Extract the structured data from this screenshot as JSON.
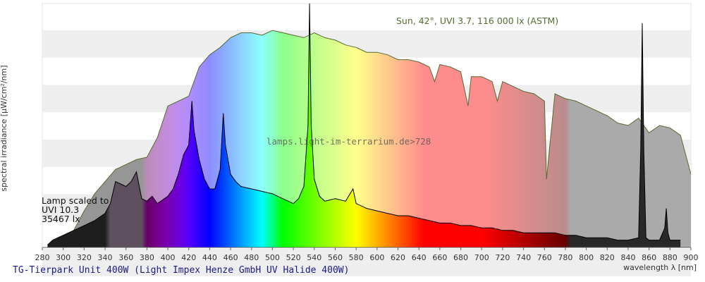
{
  "chart_data": {
    "type": "area",
    "xlabel": "wavelength λ [nm]",
    "ylabel": "spectral irradiance [µW/cm²/nm]",
    "xlim": [
      280,
      900
    ],
    "ylim": [
      0,
      100
    ],
    "x_ticks": [
      280,
      300,
      320,
      340,
      360,
      380,
      400,
      420,
      440,
      460,
      480,
      500,
      520,
      540,
      560,
      580,
      600,
      620,
      640,
      660,
      680,
      700,
      720,
      740,
      760,
      780,
      800,
      820,
      840,
      860,
      880,
      900
    ],
    "grid": "horizontal bands",
    "annotations": {
      "sun": "Sun, 42°, UVI 3.7, 116 000 lx (ASTM)",
      "watermark": "lamps.light-im-terrarium.de>728",
      "lamp_line1": "Lamp scaled to",
      "lamp_line2": "UVI 10.3",
      "lamp_line3": "35467 lx"
    },
    "caption": "TG-Tierpark Unit 400W (Light Impex Henze GmbH UV Halide 400W)",
    "series": [
      {
        "name": "Sun, 42°, UVI 3.7, 116 000 lx (ASTM)",
        "x": [
          295,
          300,
          310,
          320,
          330,
          340,
          350,
          360,
          370,
          380,
          390,
          400,
          410,
          420,
          430,
          440,
          450,
          460,
          470,
          480,
          490,
          500,
          510,
          520,
          530,
          540,
          550,
          560,
          570,
          580,
          590,
          600,
          610,
          620,
          630,
          640,
          650,
          655,
          660,
          670,
          680,
          687,
          690,
          700,
          710,
          715,
          720,
          730,
          740,
          750,
          760,
          762,
          770,
          780,
          790,
          800,
          810,
          820,
          830,
          840,
          850,
          860,
          870,
          880,
          890,
          900
        ],
        "y": [
          0,
          2,
          7,
          15,
          22,
          27,
          32,
          34,
          36,
          37,
          45,
          58,
          60,
          62,
          74,
          79,
          82,
          86,
          88,
          88,
          87,
          89,
          88,
          87,
          86,
          88,
          86,
          85,
          83,
          82,
          80,
          80,
          79,
          77,
          77,
          76,
          74,
          68,
          75,
          74,
          72,
          58,
          70,
          70,
          68,
          60,
          68,
          66,
          64,
          63,
          60,
          28,
          63,
          61,
          60,
          58,
          56,
          54,
          51,
          50,
          53,
          47,
          50,
          49,
          46,
          30
        ]
      },
      {
        "name": "Lamp scaled to UVI 10.3, 35467 lx",
        "x": [
          285,
          290,
          300,
          310,
          320,
          330,
          340,
          345,
          350,
          355,
          360,
          365,
          370,
          375,
          380,
          385,
          390,
          400,
          405,
          410,
          415,
          420,
          423,
          425,
          430,
          435,
          440,
          445,
          450,
          453,
          455,
          460,
          465,
          470,
          480,
          490,
          500,
          510,
          520,
          525,
          530,
          534,
          535.5,
          537,
          540,
          545,
          550,
          560,
          570,
          577,
          580,
          590,
          600,
          610,
          620,
          630,
          640,
          650,
          660,
          670,
          680,
          690,
          700,
          710,
          720,
          730,
          740,
          750,
          760,
          770,
          780,
          790,
          800,
          810,
          820,
          830,
          840,
          850,
          852,
          853.5,
          855,
          857,
          860,
          870,
          875,
          876.5,
          878,
          880,
          890
        ],
        "y": [
          1,
          3,
          5,
          7,
          9,
          11,
          14,
          18,
          27,
          26,
          25,
          27,
          31,
          20,
          19,
          21,
          18,
          21,
          24,
          30,
          38,
          42,
          60,
          48,
          36,
          28,
          24,
          24,
          32,
          55,
          42,
          30,
          27,
          25,
          24,
          23,
          22,
          20,
          18,
          20,
          25,
          50,
          100,
          50,
          28,
          21,
          19,
          20,
          19,
          24,
          18,
          16,
          15,
          14,
          13,
          13,
          12,
          11,
          10,
          10,
          9,
          9,
          8,
          8,
          7,
          7,
          6,
          6,
          6,
          6,
          5,
          5,
          4,
          4,
          4,
          3,
          3,
          4,
          40,
          92,
          40,
          4,
          3,
          3,
          8,
          16,
          6,
          3,
          3
        ]
      }
    ]
  }
}
